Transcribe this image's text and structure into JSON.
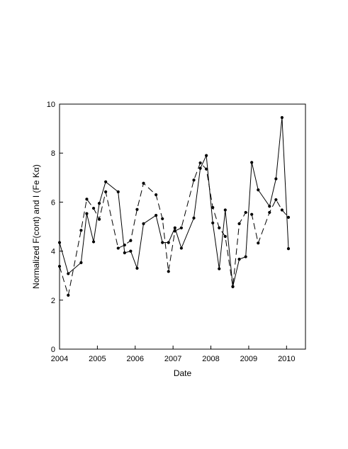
{
  "chart_data": {
    "type": "line",
    "title": "",
    "xlabel": "Date",
    "ylabel": "Normalized F(cont) and I (Fe Kα)",
    "xlim": [
      2004.0,
      2010.5
    ],
    "ylim": [
      0,
      10
    ],
    "x_ticks": [
      2004,
      2005,
      2006,
      2007,
      2008,
      2009,
      2010
    ],
    "x_tick_labels": [
      "2004",
      "2005",
      "2006",
      "2007",
      "2008",
      "2009",
      "2010"
    ],
    "y_ticks": [
      0,
      2,
      4,
      6,
      8,
      10
    ],
    "y_tick_labels": [
      "0",
      "2",
      "4",
      "6",
      "8",
      "10"
    ],
    "grid": false,
    "legend": "none",
    "series": [
      {
        "line_style": "solid",
        "points": [
          [
            2004.0,
            4.35
          ],
          [
            2004.23,
            3.08
          ],
          [
            2004.57,
            3.53
          ],
          [
            2004.72,
            5.53
          ],
          [
            2004.9,
            4.38
          ],
          [
            2005.05,
            5.95
          ],
          [
            2005.22,
            6.83
          ],
          [
            2005.55,
            6.42
          ],
          [
            2005.72,
            3.93
          ],
          [
            2005.88,
            4.0
          ],
          [
            2006.05,
            3.3
          ],
          [
            2006.22,
            5.12
          ],
          [
            2006.55,
            5.46
          ],
          [
            2006.72,
            4.35
          ],
          [
            2006.88,
            4.35
          ],
          [
            2007.05,
            4.95
          ],
          [
            2007.22,
            4.12
          ],
          [
            2007.55,
            5.35
          ],
          [
            2007.72,
            7.38
          ],
          [
            2007.88,
            7.9
          ],
          [
            2008.05,
            5.15
          ],
          [
            2008.22,
            3.28
          ],
          [
            2008.38,
            5.68
          ],
          [
            2008.58,
            2.55
          ],
          [
            2008.75,
            3.67
          ],
          [
            2008.92,
            3.77
          ],
          [
            2009.08,
            7.62
          ],
          [
            2009.25,
            6.5
          ],
          [
            2009.55,
            5.83
          ],
          [
            2009.72,
            6.95
          ],
          [
            2009.88,
            9.45
          ],
          [
            2010.05,
            4.1
          ]
        ]
      },
      {
        "line_style": "dashed",
        "points": [
          [
            2004.0,
            3.38
          ],
          [
            2004.23,
            2.2
          ],
          [
            2004.57,
            4.85
          ],
          [
            2004.72,
            6.12
          ],
          [
            2004.9,
            5.75
          ],
          [
            2005.05,
            5.3
          ],
          [
            2005.22,
            6.42
          ],
          [
            2005.55,
            4.12
          ],
          [
            2005.72,
            4.25
          ],
          [
            2005.88,
            4.43
          ],
          [
            2006.05,
            5.7
          ],
          [
            2006.22,
            6.77
          ],
          [
            2006.55,
            6.3
          ],
          [
            2006.72,
            5.32
          ],
          [
            2006.88,
            3.17
          ],
          [
            2007.05,
            4.82
          ],
          [
            2007.22,
            4.95
          ],
          [
            2007.55,
            6.9
          ],
          [
            2007.72,
            7.6
          ],
          [
            2007.88,
            7.35
          ],
          [
            2008.05,
            5.78
          ],
          [
            2008.22,
            4.95
          ],
          [
            2008.38,
            4.6
          ],
          [
            2008.58,
            2.55
          ],
          [
            2008.75,
            5.12
          ],
          [
            2008.92,
            5.58
          ],
          [
            2009.08,
            5.5
          ],
          [
            2009.25,
            4.33
          ],
          [
            2009.55,
            5.58
          ],
          [
            2009.72,
            6.1
          ],
          [
            2009.88,
            5.68
          ],
          [
            2010.05,
            5.38
          ]
        ]
      }
    ]
  }
}
